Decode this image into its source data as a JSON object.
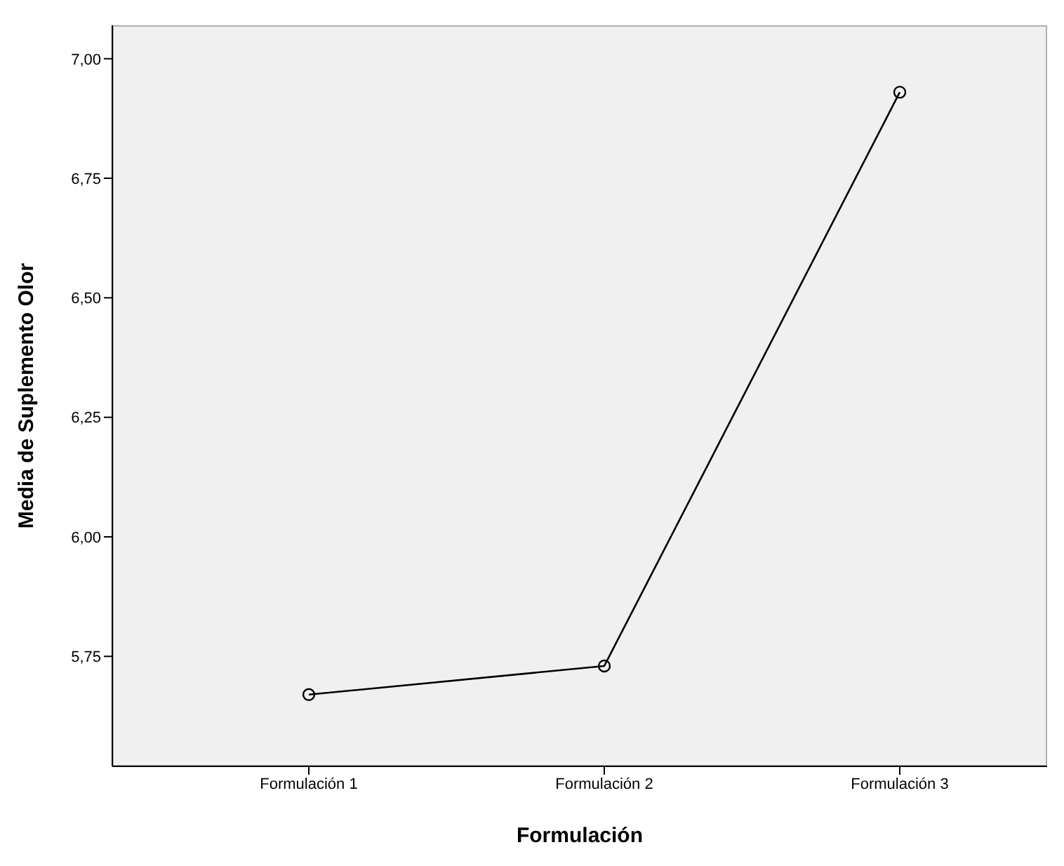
{
  "chart_data": {
    "type": "line",
    "xlabel": "Formulación",
    "ylabel": "Media de Suplemento Olor",
    "categories": [
      "Formulación 1",
      "Formulación 2",
      "Formulación 3"
    ],
    "series": [
      {
        "color": "#000000",
        "values": [
          5.67,
          5.73,
          6.93
        ]
      }
    ],
    "ylim": [
      5.52,
      7.07
    ],
    "yticks": [
      {
        "value": 5.75,
        "label": "5,75"
      },
      {
        "value": 6,
        "label": "6,00"
      },
      {
        "value": 6.25,
        "label": "6,25"
      },
      {
        "value": 6.5,
        "label": "6,50"
      },
      {
        "value": 6.75,
        "label": "6,75"
      },
      {
        "value": 7,
        "label": "7,00"
      }
    ],
    "marker": "circle",
    "line_style": "solid",
    "grid": false,
    "legend": false
  }
}
